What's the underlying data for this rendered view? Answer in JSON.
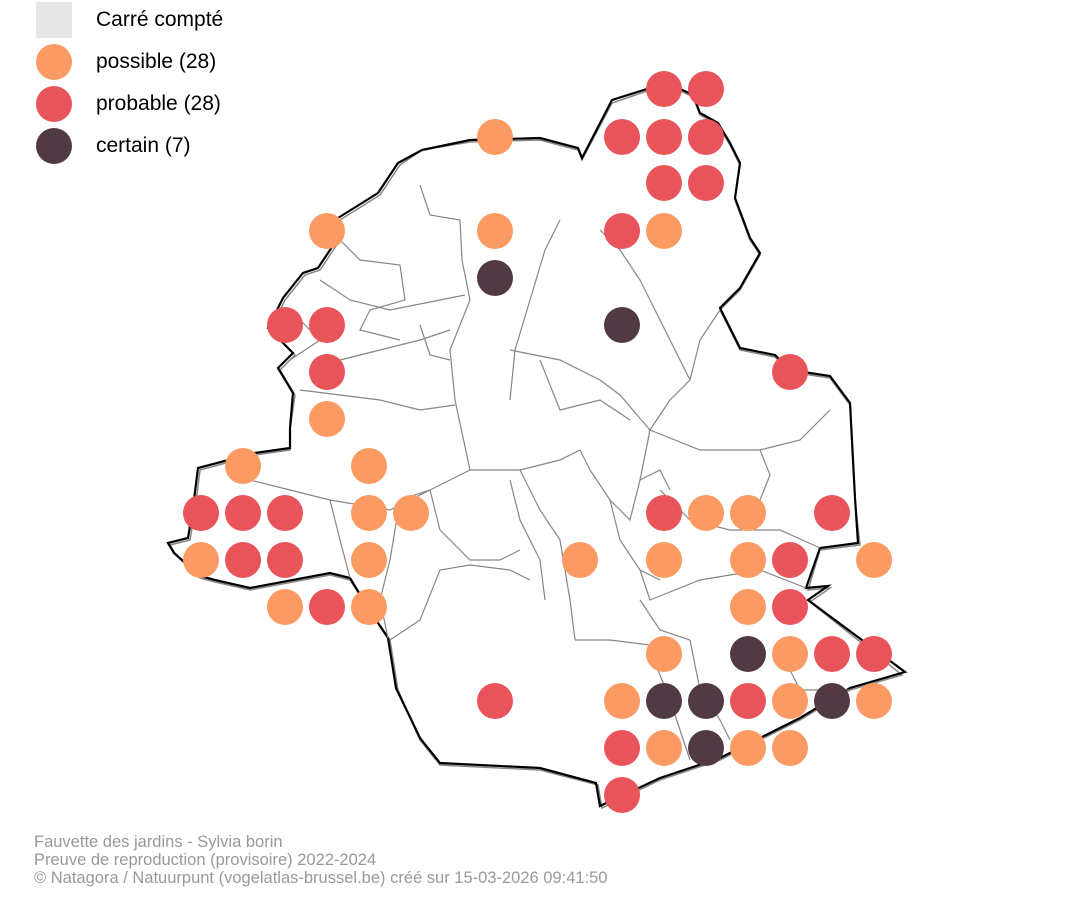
{
  "legend": {
    "items": [
      {
        "key": "counted",
        "label": "Carré compté",
        "color": "#e6e6e6",
        "shape": "square"
      },
      {
        "key": "possible",
        "label": "possible (28)",
        "color": "#fb9a62",
        "shape": "circle"
      },
      {
        "key": "probable",
        "label": "probable (28)",
        "color": "#e9535a",
        "shape": "circle"
      },
      {
        "key": "certain",
        "label": "certain (7)",
        "color": "#523a44",
        "shape": "circle"
      }
    ]
  },
  "caption": {
    "line1": "Fauvette des jardins - Sylvia borin",
    "line2": "Preuve de reproduction (provisoire) 2022-2024",
    "line3": "© Natagora / Natuurpunt (vogelatlas-brussel.be) créé sur 15-03-2026 09:41:50"
  },
  "map": {
    "outline_color": "#000000",
    "boundary_color": "#8a8580"
  }
}
